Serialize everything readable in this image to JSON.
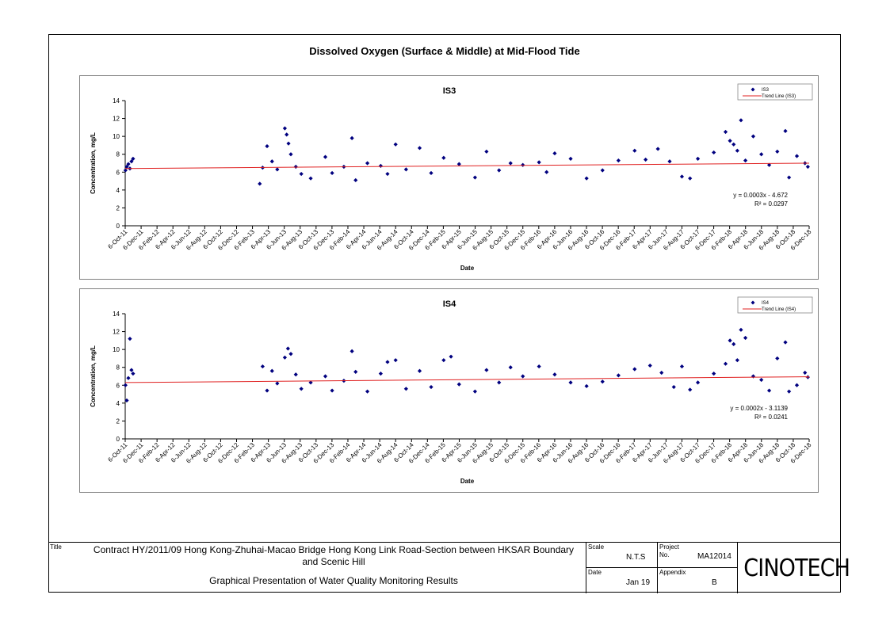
{
  "page": {
    "title": "Dissolved Oxygen (Surface & Middle) at Mid-Flood Tide"
  },
  "chart_data": [
    {
      "type": "scatter",
      "title": "IS3",
      "xlabel": "Date",
      "ylabel": "Concentration, mg/L",
      "ylim": [
        0,
        14
      ],
      "yticks": [
        0,
        2,
        4,
        6,
        8,
        10,
        12,
        14
      ],
      "xlim": [
        "2011-10-06",
        "2018-12-06"
      ],
      "x_tick_labels": [
        "6-Oct-11",
        "6-Dec-11",
        "6-Feb-12",
        "6-Apr-12",
        "6-Jun-12",
        "6-Aug-12",
        "6-Oct-12",
        "6-Dec-12",
        "6-Feb-13",
        "6-Apr-13",
        "6-Jun-13",
        "6-Aug-13",
        "6-Oct-13",
        "6-Dec-13",
        "6-Feb-14",
        "6-Apr-14",
        "6-Jun-14",
        "6-Aug-14",
        "6-Oct-14",
        "6-Dec-14",
        "6-Feb-15",
        "6-Apr-15",
        "6-Jun-15",
        "6-Aug-15",
        "6-Oct-15",
        "6-Dec-15",
        "6-Feb-16",
        "6-Apr-16",
        "6-Jun-16",
        "6-Aug-16",
        "6-Oct-16",
        "6-Dec-16",
        "6-Feb-17",
        "6-Apr-17",
        "6-Jun-17",
        "6-Aug-17",
        "6-Oct-17",
        "6-Dec-17",
        "6-Feb-18",
        "6-Apr-18",
        "6-Jun-18",
        "6-Aug-18",
        "6-Oct-18",
        "6-Dec-18"
      ],
      "grid": false,
      "legend_position": "top-right",
      "series": [
        {
          "name": "IS3",
          "marker": "diamond",
          "color": "#00007f",
          "points": [
            [
              "2011-10-07",
              6.2
            ],
            [
              "2011-10-12",
              6.6
            ],
            [
              "2011-10-18",
              6.9
            ],
            [
              "2011-10-24",
              6.4
            ],
            [
              "2011-10-30",
              7.2
            ],
            [
              "2011-11-05",
              7.5
            ],
            [
              "2013-03-04",
              4.7
            ],
            [
              "2013-03-15",
              6.5
            ],
            [
              "2013-04-01",
              8.9
            ],
            [
              "2013-04-20",
              7.2
            ],
            [
              "2013-05-10",
              6.3
            ],
            [
              "2013-06-08",
              10.9
            ],
            [
              "2013-06-15",
              10.2
            ],
            [
              "2013-06-22",
              9.2
            ],
            [
              "2013-07-01",
              8.0
            ],
            [
              "2013-07-20",
              6.6
            ],
            [
              "2013-08-10",
              5.8
            ],
            [
              "2013-09-15",
              5.3
            ],
            [
              "2013-11-10",
              7.7
            ],
            [
              "2013-12-06",
              5.9
            ],
            [
              "2014-01-20",
              6.6
            ],
            [
              "2014-02-20",
              9.8
            ],
            [
              "2014-03-06",
              5.1
            ],
            [
              "2014-04-20",
              7.0
            ],
            [
              "2014-06-10",
              6.7
            ],
            [
              "2014-07-06",
              5.8
            ],
            [
              "2014-08-06",
              9.1
            ],
            [
              "2014-09-15",
              6.3
            ],
            [
              "2014-11-06",
              8.7
            ],
            [
              "2014-12-20",
              5.9
            ],
            [
              "2015-02-06",
              7.6
            ],
            [
              "2015-04-06",
              6.9
            ],
            [
              "2015-06-06",
              5.4
            ],
            [
              "2015-07-20",
              8.3
            ],
            [
              "2015-09-06",
              6.2
            ],
            [
              "2015-10-20",
              7.0
            ],
            [
              "2015-12-06",
              6.8
            ],
            [
              "2016-02-06",
              7.1
            ],
            [
              "2016-03-06",
              6.0
            ],
            [
              "2016-04-06",
              8.1
            ],
            [
              "2016-06-06",
              7.5
            ],
            [
              "2016-08-06",
              5.3
            ],
            [
              "2016-10-06",
              6.2
            ],
            [
              "2016-12-06",
              7.3
            ],
            [
              "2017-02-06",
              8.4
            ],
            [
              "2017-03-20",
              7.4
            ],
            [
              "2017-05-06",
              8.6
            ],
            [
              "2017-06-20",
              7.2
            ],
            [
              "2017-08-06",
              5.5
            ],
            [
              "2017-09-06",
              5.3
            ],
            [
              "2017-10-06",
              7.5
            ],
            [
              "2017-12-06",
              8.2
            ],
            [
              "2018-01-20",
              10.5
            ],
            [
              "2018-02-06",
              9.5
            ],
            [
              "2018-02-20",
              9.1
            ],
            [
              "2018-03-06",
              8.4
            ],
            [
              "2018-03-20",
              11.8
            ],
            [
              "2018-04-06",
              7.3
            ],
            [
              "2018-05-06",
              10.0
            ],
            [
              "2018-06-06",
              8.0
            ],
            [
              "2018-07-06",
              6.8
            ],
            [
              "2018-08-06",
              8.3
            ],
            [
              "2018-09-06",
              10.6
            ],
            [
              "2018-09-20",
              5.4
            ],
            [
              "2018-10-20",
              7.8
            ],
            [
              "2018-11-20",
              7.0
            ],
            [
              "2018-12-01",
              6.6
            ]
          ]
        },
        {
          "name": "Trend Line (IS3)",
          "type": "line",
          "color": "#e02020",
          "values": [
            [
              "2011-10-06",
              6.4
            ],
            [
              "2018-12-06",
              7.0
            ]
          ]
        }
      ],
      "annotations": [
        "y = 0.0003x - 4.672",
        "R² = 0.0297"
      ]
    },
    {
      "type": "scatter",
      "title": "IS4",
      "xlabel": "Date",
      "ylabel": "Concentration, mg/L",
      "ylim": [
        0,
        14
      ],
      "yticks": [
        0,
        2,
        4,
        6,
        8,
        10,
        12,
        14
      ],
      "xlim": [
        "2011-10-06",
        "2018-12-06"
      ],
      "x_tick_labels": [
        "6-Oct-11",
        "6-Dec-11",
        "6-Feb-12",
        "6-Apr-12",
        "6-Jun-12",
        "6-Aug-12",
        "6-Oct-12",
        "6-Dec-12",
        "6-Feb-13",
        "6-Apr-13",
        "6-Jun-13",
        "6-Aug-13",
        "6-Oct-13",
        "6-Dec-13",
        "6-Feb-14",
        "6-Apr-14",
        "6-Jun-14",
        "6-Aug-14",
        "6-Oct-14",
        "6-Dec-14",
        "6-Feb-15",
        "6-Apr-15",
        "6-Jun-15",
        "6-Aug-15",
        "6-Oct-15",
        "6-Dec-15",
        "6-Feb-16",
        "6-Apr-16",
        "6-Jun-16",
        "6-Aug-16",
        "6-Oct-16",
        "6-Dec-16",
        "6-Feb-17",
        "6-Apr-17",
        "6-Jun-17",
        "6-Aug-17",
        "6-Oct-17",
        "6-Dec-17",
        "6-Feb-18",
        "6-Apr-18",
        "6-Jun-18",
        "6-Aug-18",
        "6-Oct-18",
        "6-Dec-18"
      ],
      "grid": false,
      "legend_position": "top-right",
      "series": [
        {
          "name": "IS4",
          "marker": "diamond",
          "color": "#00007f",
          "points": [
            [
              "2011-10-07",
              6.0
            ],
            [
              "2011-10-12",
              4.3
            ],
            [
              "2011-10-18",
              6.8
            ],
            [
              "2011-10-24",
              11.2
            ],
            [
              "2011-10-30",
              7.7
            ],
            [
              "2011-11-05",
              7.3
            ],
            [
              "2013-03-15",
              8.1
            ],
            [
              "2013-04-01",
              5.4
            ],
            [
              "2013-04-20",
              7.6
            ],
            [
              "2013-05-10",
              6.2
            ],
            [
              "2013-06-08",
              9.1
            ],
            [
              "2013-06-20",
              10.1
            ],
            [
              "2013-07-01",
              9.5
            ],
            [
              "2013-07-20",
              7.2
            ],
            [
              "2013-08-10",
              5.6
            ],
            [
              "2013-09-15",
              6.3
            ],
            [
              "2013-11-10",
              7.0
            ],
            [
              "2013-12-06",
              5.4
            ],
            [
              "2014-01-20",
              6.5
            ],
            [
              "2014-02-20",
              9.8
            ],
            [
              "2014-03-06",
              7.5
            ],
            [
              "2014-04-20",
              5.3
            ],
            [
              "2014-06-10",
              7.3
            ],
            [
              "2014-07-06",
              8.6
            ],
            [
              "2014-08-06",
              8.8
            ],
            [
              "2014-09-15",
              5.6
            ],
            [
              "2014-11-06",
              7.6
            ],
            [
              "2014-12-20",
              5.8
            ],
            [
              "2015-02-06",
              8.8
            ],
            [
              "2015-03-06",
              9.2
            ],
            [
              "2015-04-06",
              6.1
            ],
            [
              "2015-06-06",
              5.3
            ],
            [
              "2015-07-20",
              7.7
            ],
            [
              "2015-09-06",
              6.3
            ],
            [
              "2015-10-20",
              8.0
            ],
            [
              "2015-12-06",
              7.0
            ],
            [
              "2016-02-06",
              8.1
            ],
            [
              "2016-04-06",
              7.2
            ],
            [
              "2016-06-06",
              6.3
            ],
            [
              "2016-08-06",
              5.9
            ],
            [
              "2016-10-06",
              6.4
            ],
            [
              "2016-12-06",
              7.1
            ],
            [
              "2017-02-06",
              7.8
            ],
            [
              "2017-04-06",
              8.2
            ],
            [
              "2017-05-20",
              7.4
            ],
            [
              "2017-07-06",
              5.8
            ],
            [
              "2017-08-06",
              8.1
            ],
            [
              "2017-09-06",
              5.5
            ],
            [
              "2017-10-06",
              6.3
            ],
            [
              "2017-12-06",
              7.3
            ],
            [
              "2018-01-20",
              8.4
            ],
            [
              "2018-02-06",
              11.0
            ],
            [
              "2018-02-20",
              10.6
            ],
            [
              "2018-03-06",
              8.8
            ],
            [
              "2018-03-20",
              12.2
            ],
            [
              "2018-04-06",
              11.3
            ],
            [
              "2018-05-06",
              7.0
            ],
            [
              "2018-06-06",
              6.6
            ],
            [
              "2018-07-06",
              5.4
            ],
            [
              "2018-08-06",
              9.0
            ],
            [
              "2018-09-06",
              10.8
            ],
            [
              "2018-09-20",
              5.3
            ],
            [
              "2018-10-20",
              6.0
            ],
            [
              "2018-11-20",
              7.4
            ],
            [
              "2018-12-01",
              6.9
            ]
          ]
        },
        {
          "name": "Trend Line (IS4)",
          "type": "line",
          "color": "#e02020",
          "values": [
            [
              "2011-10-06",
              6.3
            ],
            [
              "2018-12-06",
              6.95
            ]
          ]
        }
      ],
      "annotations": [
        "y = 0.0002x - 3.1139",
        "R² = 0.0241"
      ]
    }
  ],
  "title_block": {
    "title_label": "Title",
    "title_line1": "Contract HY/2011/09 Hong Kong-Zhuhai-Macao Bridge Hong Kong Link Road-Section between HKSAR Boundary",
    "title_line2": "and Scenic Hill",
    "subtitle": "Graphical Presentation of Water Quality Monitoring Results",
    "scale_label": "Scale",
    "scale_value": "N.T.S",
    "date_label": "Date",
    "date_value": "Jan 19",
    "project_label": "Project",
    "project_no_label": "No.",
    "project_no_value": "MA12014",
    "appendix_label": "Appendix",
    "appendix_value": "B",
    "logo_text": "CINOTECH"
  }
}
